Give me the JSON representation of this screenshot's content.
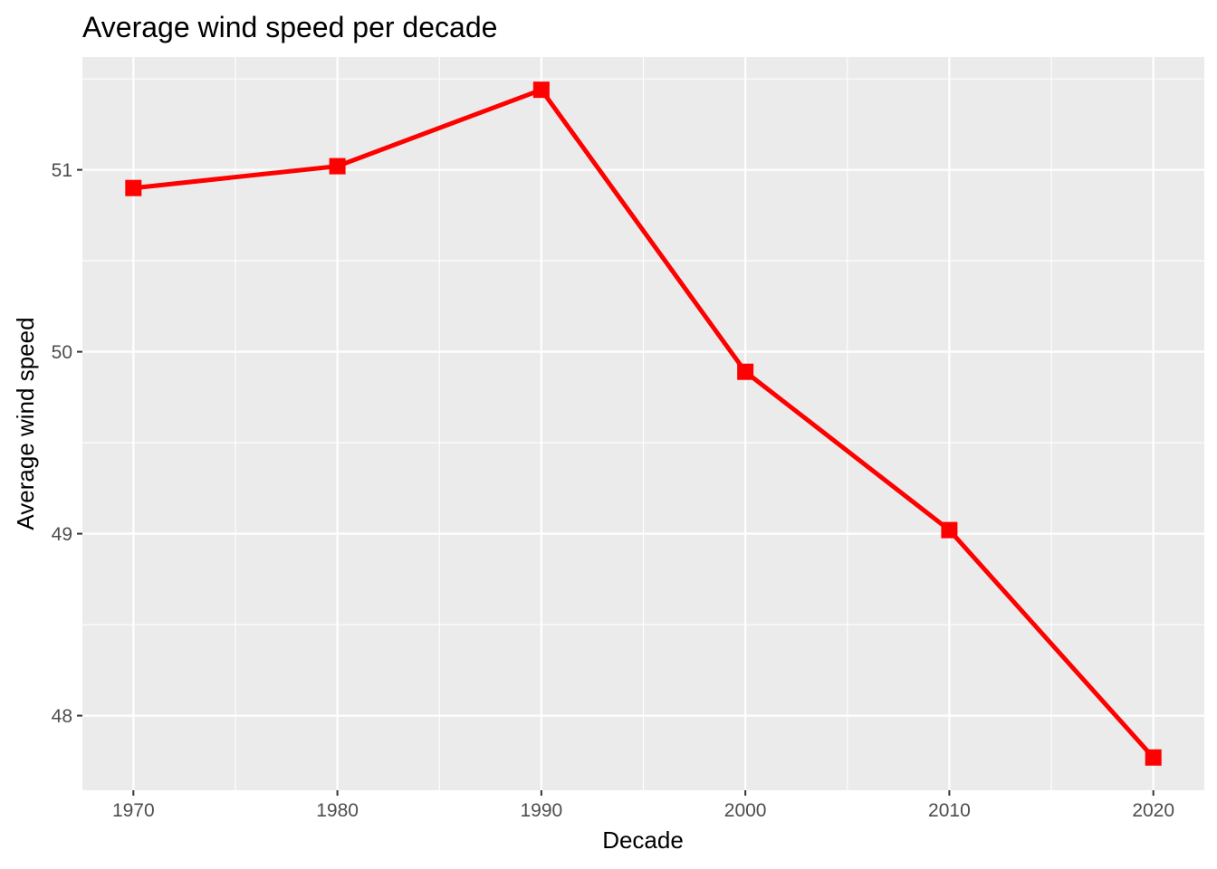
{
  "chart_data": {
    "type": "line",
    "title": "Average wind speed per decade",
    "xlabel": "Decade",
    "ylabel": "Average wind speed",
    "x": [
      1970,
      1980,
      1990,
      2000,
      2010,
      2020
    ],
    "x_tick_labels": [
      "1970",
      "1980",
      "1990",
      "2000",
      "2010",
      "2020"
    ],
    "y_ticks": [
      48,
      49,
      50,
      51
    ],
    "y_tick_labels": [
      "48",
      "49",
      "50",
      "51"
    ],
    "xlim": [
      1967.5,
      2022.5
    ],
    "ylim": [
      47.59,
      51.62
    ],
    "grid": true,
    "legend": "none",
    "series": [
      {
        "values": [
          50.9,
          51.02,
          51.44,
          49.89,
          49.02,
          47.77
        ],
        "color": "#ff0000",
        "marker": "square"
      }
    ],
    "panel_background": "#ebebeb",
    "grid_color": "#ffffff"
  }
}
